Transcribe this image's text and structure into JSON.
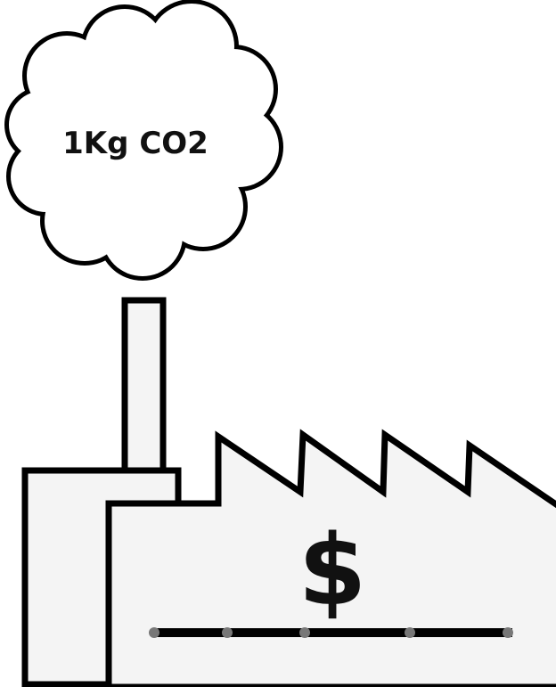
{
  "cloud": {
    "label": "1Kg CO2"
  },
  "factory": {
    "label": "$"
  }
}
